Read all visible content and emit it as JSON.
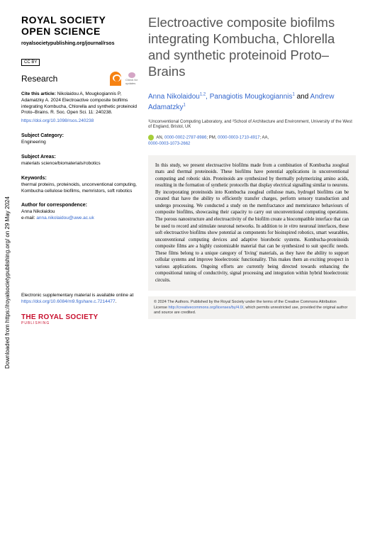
{
  "rotated": "Downloaded from https://royalsocietypublishing.org/ on 29 May 2024",
  "sidebar": {
    "journal_name": "ROYAL SOCIETY\nOPEN SCIENCE",
    "journal_url": "royalsocietypublishing.org/journal/rsos",
    "cc": "CC BY",
    "research": "Research",
    "check_updates": "Check for updates",
    "cite_label": "Cite this article:",
    "cite_text": "Nikolaidou A, Mougkogiannis P, Adamatzky A. 2024 Electroactive composite biofilms integrating Kombucha, Chlorella and synthetic proteinoid Proto–Brains. R. Soc. Open Sci. 11: 240238.",
    "doi": "https://doi.org/10.1098/rsos.240238",
    "subj_cat_label": "Subject Category:",
    "subj_cat": "Engineering",
    "subj_areas_label": "Subject Areas:",
    "subj_areas": "materials science/biomaterials/robotics",
    "keywords_label": "Keywords:",
    "keywords": "thermal proteins, proteinoids, unconventional computing, Kombucha cellulose biofilms, memristors, soft robotics",
    "author_corr_label": "Author for correspondence:",
    "author_corr_name": "Anna Nikolaidou",
    "author_corr_email": "anna.nikolaidou@uwe.ac.uk",
    "esm_text": "Electronic supplementary material is available online at ",
    "esm_link": "https://doi.org/10.6084/m9.figshare.c.7214477",
    "rs_logo": "THE ROYAL SOCIETY",
    "rs_logo_sub": "PUBLISHING"
  },
  "main": {
    "title": "Electroactive composite biofilms integrating Kombucha, Chlorella and synthetic proteinoid Proto–Brains",
    "author1": "Anna Nikolaidou",
    "author1_sup": "1,2",
    "author2": "Panagiotis Mougkogiannis",
    "author2_sup": "1",
    "author3": "Andrew Adamatzky",
    "author3_sup": "1",
    "and": "and",
    "affiliations": "¹Unconventional Computing Laboratory, and ²School of Architecture and Environment, University of the West of England, Bristol, UK",
    "orcid_an_label": "AN,",
    "orcid_an": "0000-0002-2787-8986",
    "orcid_pm_label": "; PM,",
    "orcid_pm": "0000-0003-1710-4917",
    "orcid_aa_label": "; AA,",
    "orcid_aa": "0000-0003-1073-2662",
    "abstract": "In this study, we present electroactive biofilms made from a combination of Kombucha zoogleal mats and thermal proteinoids. These biofilms have potential applications in unconventional computing and robotic skin. Proteinoids are synthesized by thermally polymerizing amino acids, resulting in the formation of synthetic protocells that display electrical signalling similar to neurons. By incorporating proteinoids into Kombucha zoogleal cellulose mats, hydrogel biofilms can be created that have the ability to efficiently transfer charges, perform sensory transduction and undergo processing. We conducted a study on the memfractance and memristance behaviours of composite biofilms, showcasing their capacity to carry out unconventional computing operations. The porous nanostructure and electroactivity of the biofilm create a biocompatible interface that can be used to record and stimulate neuronal networks. In addition to ",
    "abstract_italic": "in vitro",
    "abstract2": " neuronal interfaces, these soft electroactive biofilms show potential as components for bioinspired robotics, smart wearables, unconventional computing devices and adaptive biorobotic systems. Kombucha-proteinoids composite films are a highly customizable material that can be synthesized to suit specific needs. These films belong to a unique category of 'living' materials, as they have the ability to support cellular systems and improve bioelectronic functionality. This makes them an exciting prospect in various applications. Ongoing efforts are currently being directed towards enhancing the compositional tuning of conductivity, signal processing and integration within hybrid bioelectronic circuits.",
    "license": "© 2024 The Authors. Published by the Royal Society under the terms of the Creative Commons Attribution License ",
    "license_link": "http://creativecommons.org/licenses/by/4.0/",
    "license2": ", which permits unrestricted use, provided the original author and source are credited."
  }
}
